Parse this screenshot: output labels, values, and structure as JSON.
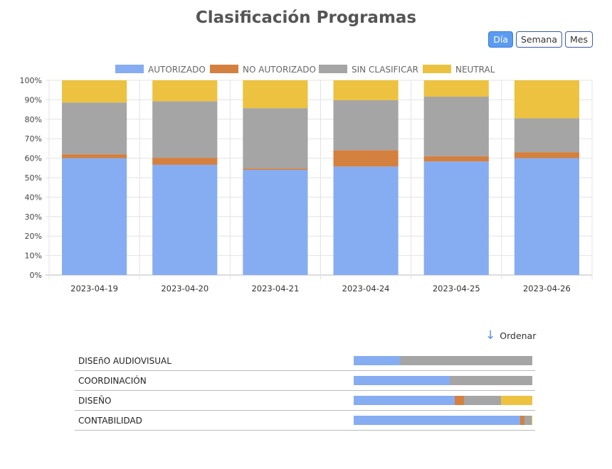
{
  "title": "Clasificación Programas",
  "period_buttons": [
    {
      "label": "Día",
      "active": true
    },
    {
      "label": "Semana",
      "active": false
    },
    {
      "label": "Mes",
      "active": false
    }
  ],
  "colors": {
    "AUTORIZADO": "#86adf2",
    "NO AUTORIZADO": "#d4803f",
    "SIN CLASIFICAR": "#a5a5a5",
    "NEUTRAL": "#ecc240"
  },
  "chart_data": {
    "type": "bar",
    "stacked": true,
    "legend_position": "top",
    "grid": true,
    "ylim": [
      0,
      100
    ],
    "yticks": [
      "0%",
      "10%",
      "20%",
      "30%",
      "40%",
      "50%",
      "60%",
      "70%",
      "80%",
      "90%",
      "100%"
    ],
    "categories": [
      "2023-04-19",
      "2023-04-20",
      "2023-04-21",
      "2023-04-24",
      "2023-04-25",
      "2023-04-26"
    ],
    "series": [
      {
        "name": "AUTORIZADO",
        "values": [
          60,
          56.6,
          54,
          55.7,
          58.3,
          60
        ]
      },
      {
        "name": "NO AUTORIZADO",
        "values": [
          2,
          3.6,
          0.7,
          8.4,
          2.7,
          3.1
        ]
      },
      {
        "name": "SIN CLASIFICAR",
        "values": [
          26.6,
          29,
          31,
          25.7,
          30.6,
          17.4
        ]
      },
      {
        "name": "NEUTRAL",
        "values": [
          11.4,
          10.8,
          14.3,
          10.2,
          8.4,
          19.5
        ]
      }
    ]
  },
  "sort": {
    "icon": "arrow-down-icon",
    "label": "Ordenar"
  },
  "departments": [
    {
      "name": "DISEñO AUDIOVISUAL",
      "values": [
        26,
        0,
        74,
        0
      ]
    },
    {
      "name": "COORDINACIÓN",
      "values": [
        53.7,
        0,
        46.3,
        0
      ]
    },
    {
      "name": "DISEÑO",
      "values": [
        56.4,
        5.2,
        20.7,
        17.7
      ]
    },
    {
      "name": "CONTABILIDAD",
      "values": [
        93.3,
        2.4,
        3.9,
        0.4
      ]
    }
  ]
}
